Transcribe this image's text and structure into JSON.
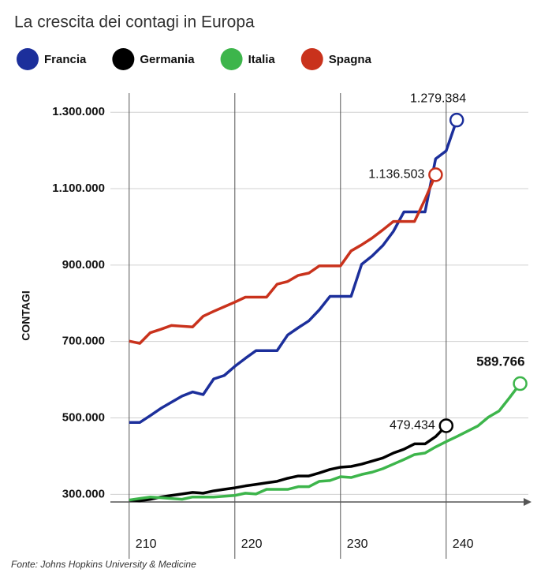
{
  "chart_data": {
    "type": "line",
    "title": "La crescita dei contagi in Europa",
    "y_label": "CONTAGI",
    "source": "Fonte: Johns Hopkins University & Medicine",
    "x": [
      210,
      211,
      212,
      213,
      214,
      215,
      216,
      217,
      218,
      219,
      220,
      221,
      222,
      223,
      224,
      225,
      226,
      227,
      228,
      229,
      230,
      231,
      232,
      233,
      234,
      235,
      236,
      237,
      238,
      239,
      240,
      241,
      242,
      243,
      244,
      245,
      246,
      247
    ],
    "xlim": [
      208,
      248
    ],
    "xticks": [
      210,
      220,
      230,
      240
    ],
    "ylim": [
      280000,
      1350000
    ],
    "yticks": [
      {
        "value": 300000,
        "label": "300.000"
      },
      {
        "value": 500000,
        "label": "500.000"
      },
      {
        "value": 700000,
        "label": "700.000"
      },
      {
        "value": 900000,
        "label": "900.000"
      },
      {
        "value": 1100000,
        "label": "1.100.000"
      },
      {
        "value": 1300000,
        "label": "1.300.000"
      }
    ],
    "grid": true,
    "series": [
      {
        "name": "Francia",
        "color": "#1c2f9b",
        "values": [
          488000,
          488000,
          506000,
          525000,
          541000,
          557000,
          568000,
          561000,
          602000,
          611000,
          635000,
          656000,
          676000,
          676000,
          676000,
          717000,
          736000,
          754000,
          783000,
          818000,
          818000,
          818000,
          902000,
          924000,
          951000,
          988000,
          1039000,
          1039000,
          1039000,
          1178000,
          1199000,
          1279384,
          null,
          null,
          null,
          null,
          null,
          null
        ],
        "value_labels": [
          null,
          null,
          null,
          null,
          null,
          null,
          null,
          null,
          null,
          null,
          null,
          null,
          null,
          null,
          null,
          null,
          null,
          null,
          null,
          null,
          null,
          null,
          null,
          null,
          null,
          null,
          null,
          null,
          null,
          null,
          null,
          "1.279.384",
          null,
          null,
          null,
          null,
          null,
          null
        ]
      },
      {
        "name": "Germania",
        "color": "#000000",
        "values": [
          285000,
          283000,
          287000,
          293000,
          297000,
          301000,
          305000,
          303000,
          309000,
          313000,
          317000,
          322000,
          326000,
          330000,
          334000,
          342000,
          348000,
          348000,
          356000,
          365000,
          371000,
          373000,
          379000,
          387000,
          395000,
          408000,
          418000,
          432000,
          432000,
          451000,
          479434,
          null,
          null,
          null,
          null,
          null,
          null,
          null
        ],
        "value_labels": [
          null,
          null,
          null,
          null,
          null,
          null,
          null,
          null,
          null,
          null,
          null,
          null,
          null,
          null,
          null,
          null,
          null,
          null,
          null,
          null,
          null,
          null,
          null,
          null,
          null,
          null,
          null,
          null,
          null,
          null,
          "479.434",
          null,
          null,
          null,
          null,
          null,
          null,
          null
        ]
      },
      {
        "name": "Italia",
        "color": "#3db54b",
        "values": [
          285000,
          289000,
          293000,
          291000,
          289000,
          287000,
          293000,
          293000,
          293000,
          295000,
          297000,
          303000,
          301000,
          313000,
          313000,
          313000,
          320000,
          320000,
          334000,
          336000,
          346000,
          344000,
          352000,
          358000,
          367000,
          379000,
          391000,
          404000,
          408000,
          424000,
          438000,
          451000,
          465000,
          479000,
          502000,
          518000,
          553000,
          589766
        ],
        "value_labels": [
          null,
          null,
          null,
          null,
          null,
          null,
          null,
          null,
          null,
          null,
          null,
          null,
          null,
          null,
          null,
          null,
          null,
          null,
          null,
          null,
          null,
          null,
          null,
          null,
          null,
          null,
          null,
          null,
          null,
          null,
          null,
          null,
          null,
          null,
          null,
          null,
          null,
          "589.766"
        ]
      },
      {
        "name": "Spagna",
        "color": "#c9321c",
        "values": [
          701000,
          695000,
          723000,
          732000,
          742000,
          740000,
          738000,
          766000,
          779000,
          791000,
          803000,
          816000,
          816000,
          816000,
          850000,
          857000,
          873000,
          879000,
          898000,
          898000,
          898000,
          937000,
          953000,
          971000,
          992000,
          1014000,
          1014000,
          1014000,
          1072000,
          1136503,
          null,
          null,
          null,
          null,
          null,
          null,
          null,
          null
        ],
        "value_labels": [
          null,
          null,
          null,
          null,
          null,
          null,
          null,
          null,
          null,
          null,
          null,
          null,
          null,
          null,
          null,
          null,
          null,
          null,
          null,
          null,
          null,
          null,
          null,
          null,
          null,
          null,
          null,
          null,
          null,
          "1.136.503",
          null,
          null,
          null,
          null,
          null,
          null,
          null,
          null
        ]
      }
    ]
  }
}
